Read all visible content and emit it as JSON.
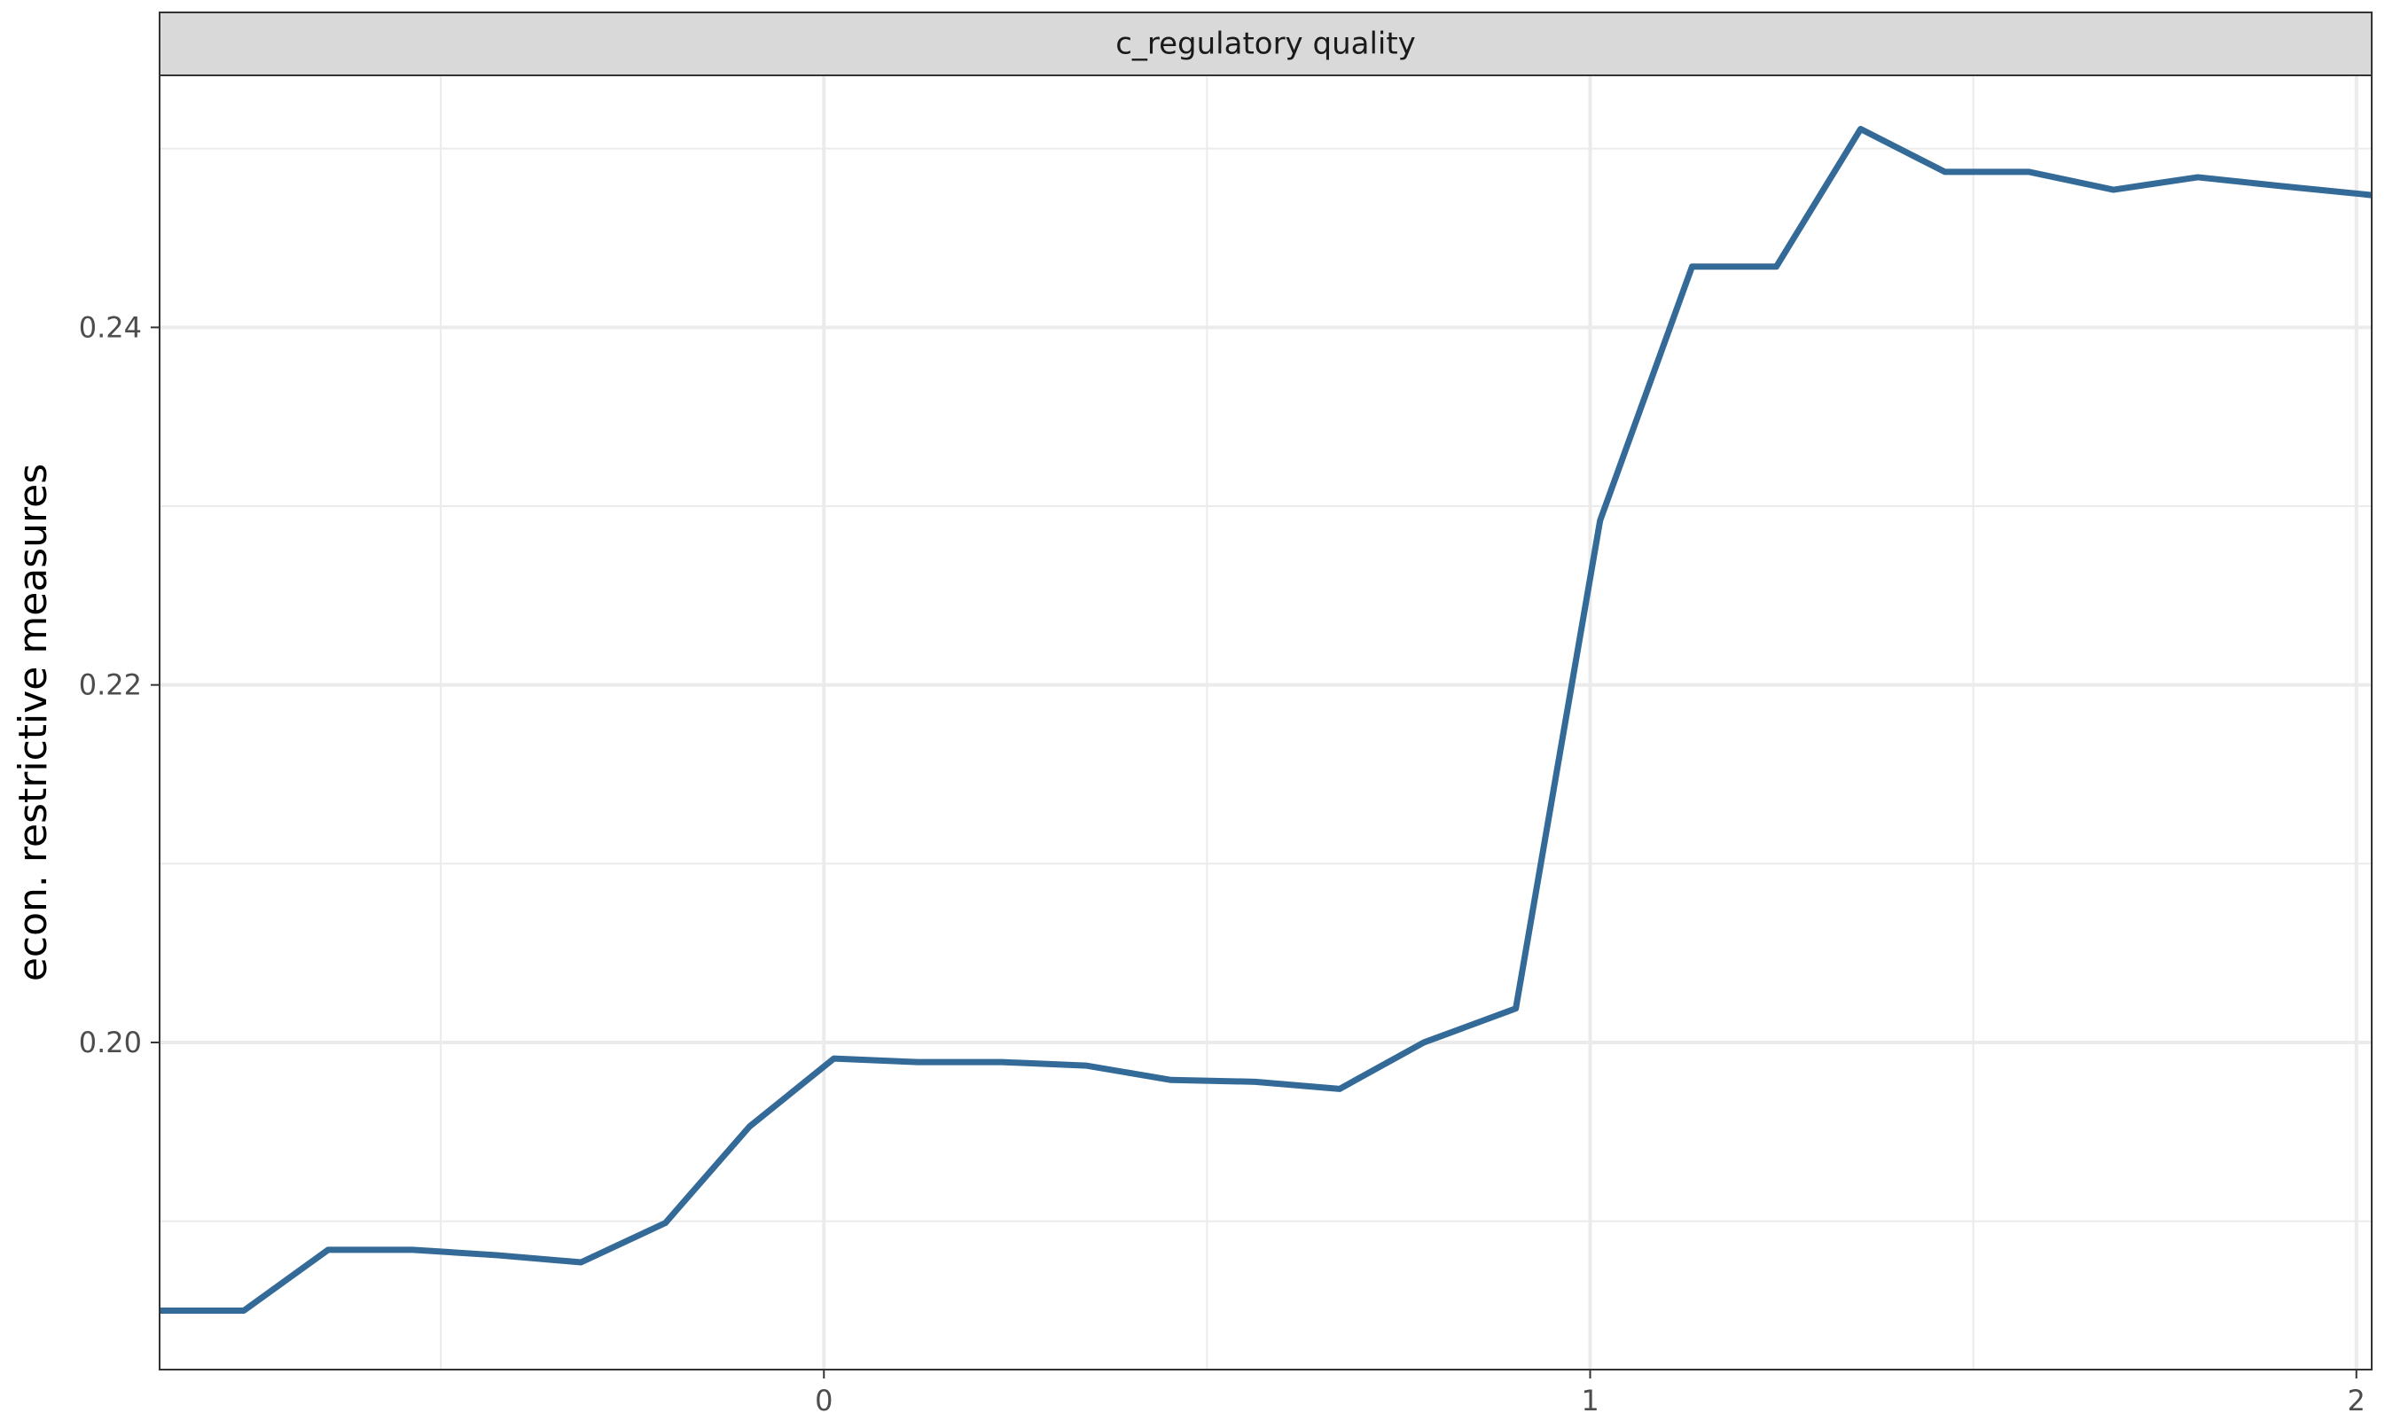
{
  "chart_data": {
    "type": "line",
    "facet_label": "c_regulatory quality",
    "xlabel": "",
    "ylabel": "econ. restrictive measures",
    "xlim": [
      -0.867,
      2.02
    ],
    "ylim": [
      0.1817,
      0.2541
    ],
    "x_ticks": [
      0,
      1,
      2
    ],
    "x_tick_labels": [
      "0",
      "1",
      "2"
    ],
    "y_ticks": [
      0.2,
      0.22,
      0.24
    ],
    "y_tick_labels": [
      "0.20",
      "0.22",
      "0.24"
    ],
    "grid": true,
    "series": [
      {
        "color": "#336a98",
        "x": [
          -0.867,
          -0.757,
          -0.647,
          -0.537,
          -0.427,
          -0.317,
          -0.207,
          -0.097,
          0.013,
          0.123,
          0.233,
          0.343,
          0.453,
          0.563,
          0.673,
          0.783,
          0.903,
          1.013,
          1.133,
          1.243,
          1.353,
          1.463,
          1.573,
          1.683,
          1.793,
          1.903,
          2.02
        ],
        "y": [
          0.185,
          0.185,
          0.1884,
          0.1884,
          0.1881,
          0.1877,
          0.1899,
          0.1953,
          0.1991,
          0.1989,
          0.1989,
          0.1987,
          0.1979,
          0.1978,
          0.1974,
          0.2,
          0.2019,
          0.2292,
          0.2434,
          0.2434,
          0.2511,
          0.2487,
          0.2487,
          0.2477,
          0.2484,
          0.2479,
          0.2474
        ]
      }
    ]
  }
}
